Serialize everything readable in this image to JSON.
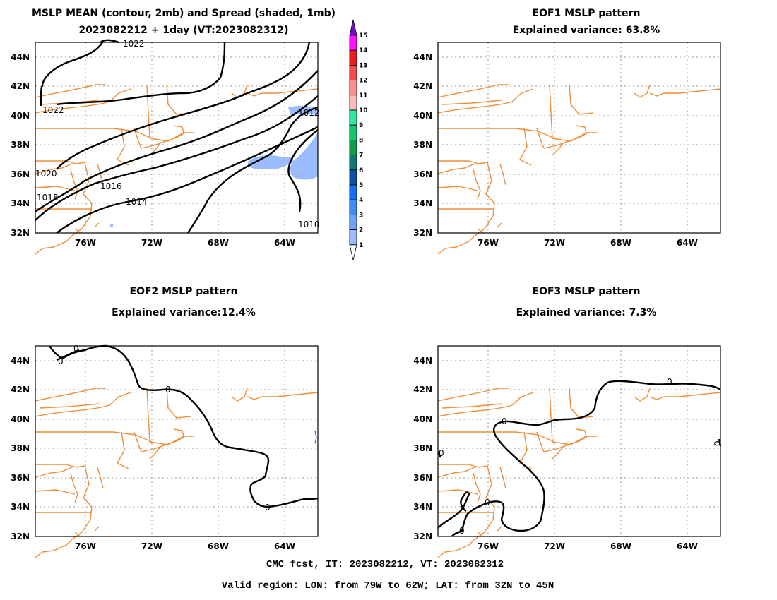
{
  "panels": [
    {
      "title_line1": "MSLP MEAN (contour, 2mb) and Spread (shaded, 1mb)",
      "title_line2": "2023082212 + 1day (VT:2023082312)",
      "contour_labels": [
        "1022",
        "1022",
        "1020",
        "1018",
        "1016",
        "1014",
        "1012",
        "1010"
      ]
    },
    {
      "title_line1": "EOF1 MSLP pattern",
      "title_line2": "Explained variance: 63.8%",
      "contour_labels": []
    },
    {
      "title_line1": "EOF2 MSLP pattern",
      "title_line2": "Explained variance:12.4%",
      "contour_labels": [
        "0",
        "0",
        "0",
        "0"
      ]
    },
    {
      "title_line1": "EOF3 MSLP pattern",
      "title_line2": "Explained variance: 7.3%",
      "contour_labels": [
        "0",
        "0",
        "0",
        "0",
        "0",
        "0"
      ]
    }
  ],
  "axes": {
    "lat_labels": [
      "44N",
      "42N",
      "40N",
      "38N",
      "36N",
      "34N",
      "32N"
    ],
    "lon_labels": [
      "76W",
      "72W",
      "68W",
      "64W"
    ],
    "lon_range": [
      -79,
      -62
    ],
    "lat_range": [
      32,
      45
    ]
  },
  "colorbar": {
    "labels": [
      "15",
      "14",
      "13",
      "12",
      "11",
      "10",
      "9",
      "8",
      "7",
      "6",
      "5",
      "4",
      "3",
      "2",
      "1"
    ],
    "colors": [
      "#6a11c9",
      "#ff12ff",
      "#e81d1d",
      "#f44a4a",
      "#ff8f8f",
      "#fcbcbc",
      "#34e6a0",
      "#16c46e",
      "#0f9c48",
      "#137872",
      "#0a4fa8",
      "#1070f0",
      "#3e8cf5",
      "#6ea2f8",
      "#9bbcff",
      "#ffffff"
    ]
  },
  "footer": {
    "line1": "CMC fcst, IT: 2023082212, VT: 2023082312",
    "line2": "Valid region: LON: from 79W to 62W; LAT: from 32N to 45N"
  },
  "style": {
    "coast_color": "#ee8f3a",
    "spread_shade_color": "#9bbcff",
    "contour_color": "#000000"
  }
}
